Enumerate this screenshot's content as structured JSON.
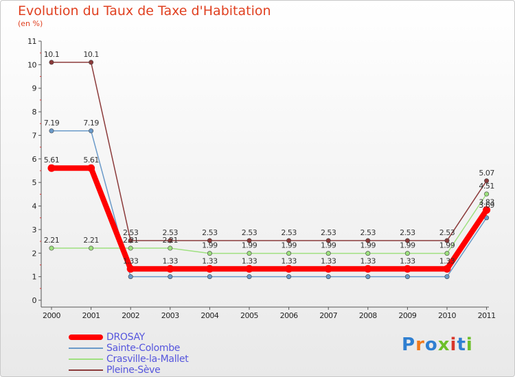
{
  "title": "Evolution du Taux de Taxe d'Habitation",
  "unit": "(en %)",
  "brand": {
    "text": "Proxiti",
    "colors": [
      "#2f7fd1",
      "#f07a1e",
      "#2f7fd1",
      "#6cbf2a",
      "#d9362b",
      "#2f7fd1",
      "#6cbf2a"
    ]
  },
  "chart_data": {
    "type": "line",
    "title": "Evolution du Taux de Taxe d'Habitation",
    "ylabel": "(en %)",
    "categories": [
      "2000",
      "2001",
      "2002",
      "2003",
      "2004",
      "2005",
      "2006",
      "2007",
      "2008",
      "2009",
      "2010",
      "2011"
    ],
    "ylim": [
      0,
      11
    ],
    "yticks": [
      0,
      1,
      2,
      3,
      4,
      5,
      6,
      7,
      8,
      9,
      10,
      11
    ],
    "series": [
      {
        "name": "Pleine-Sève",
        "color": "#8b3a3a",
        "values": [
          10.1,
          10.1,
          2.53,
          2.53,
          2.53,
          2.53,
          2.53,
          2.53,
          2.53,
          2.53,
          2.53,
          5.07
        ],
        "labels": [
          "10.1",
          "10.1",
          "2.53",
          "2.53",
          "2.53",
          "2.53",
          "2.53",
          "2.53",
          "2.53",
          "2.53",
          "2.53",
          "5.07"
        ]
      },
      {
        "name": "Sainte-Colombe",
        "color": "#6a9ac9",
        "values": [
          7.19,
          7.19,
          1.0,
          1.0,
          1.0,
          1.0,
          1.0,
          1.0,
          1.0,
          1.0,
          1.0,
          3.5
        ],
        "labels": [
          "7.19",
          "7.19",
          "",
          "",
          "",
          "",
          "",
          "",
          "",
          "",
          "",
          ""
        ]
      },
      {
        "name": "Crasville-la-Mallet",
        "color": "#9ee07f",
        "values": [
          2.21,
          2.21,
          2.21,
          2.21,
          1.99,
          1.99,
          1.99,
          1.99,
          1.99,
          1.99,
          1.99,
          4.51
        ],
        "labels": [
          "2.21",
          "2.21",
          "2.21",
          "2.21",
          "1.99",
          "1.99",
          "1.99",
          "1.99",
          "1.99",
          "1.99",
          "1.99",
          "4.51"
        ]
      },
      {
        "name": "DROSAY",
        "color": "#ff0000",
        "values": [
          5.61,
          5.61,
          1.33,
          1.33,
          1.33,
          1.33,
          1.33,
          1.33,
          1.33,
          1.33,
          1.33,
          3.83
        ],
        "labels": [
          "5.61",
          "5.61",
          "1.33",
          "1.33",
          "1.33",
          "1.33",
          "1.33",
          "1.33",
          "1.33",
          "1.33",
          "1.33",
          "3.83"
        ]
      }
    ],
    "extra_labels": [
      {
        "category": "2011",
        "value": 3.69,
        "text": "3.69"
      }
    ]
  },
  "legend": [
    {
      "name": "DROSAY",
      "color": "#ff0000"
    },
    {
      "name": "Sainte-Colombe",
      "color": "#6a9ac9"
    },
    {
      "name": "Crasville-la-Mallet",
      "color": "#9ee07f"
    },
    {
      "name": "Pleine-Sève",
      "color": "#8b3a3a"
    }
  ]
}
